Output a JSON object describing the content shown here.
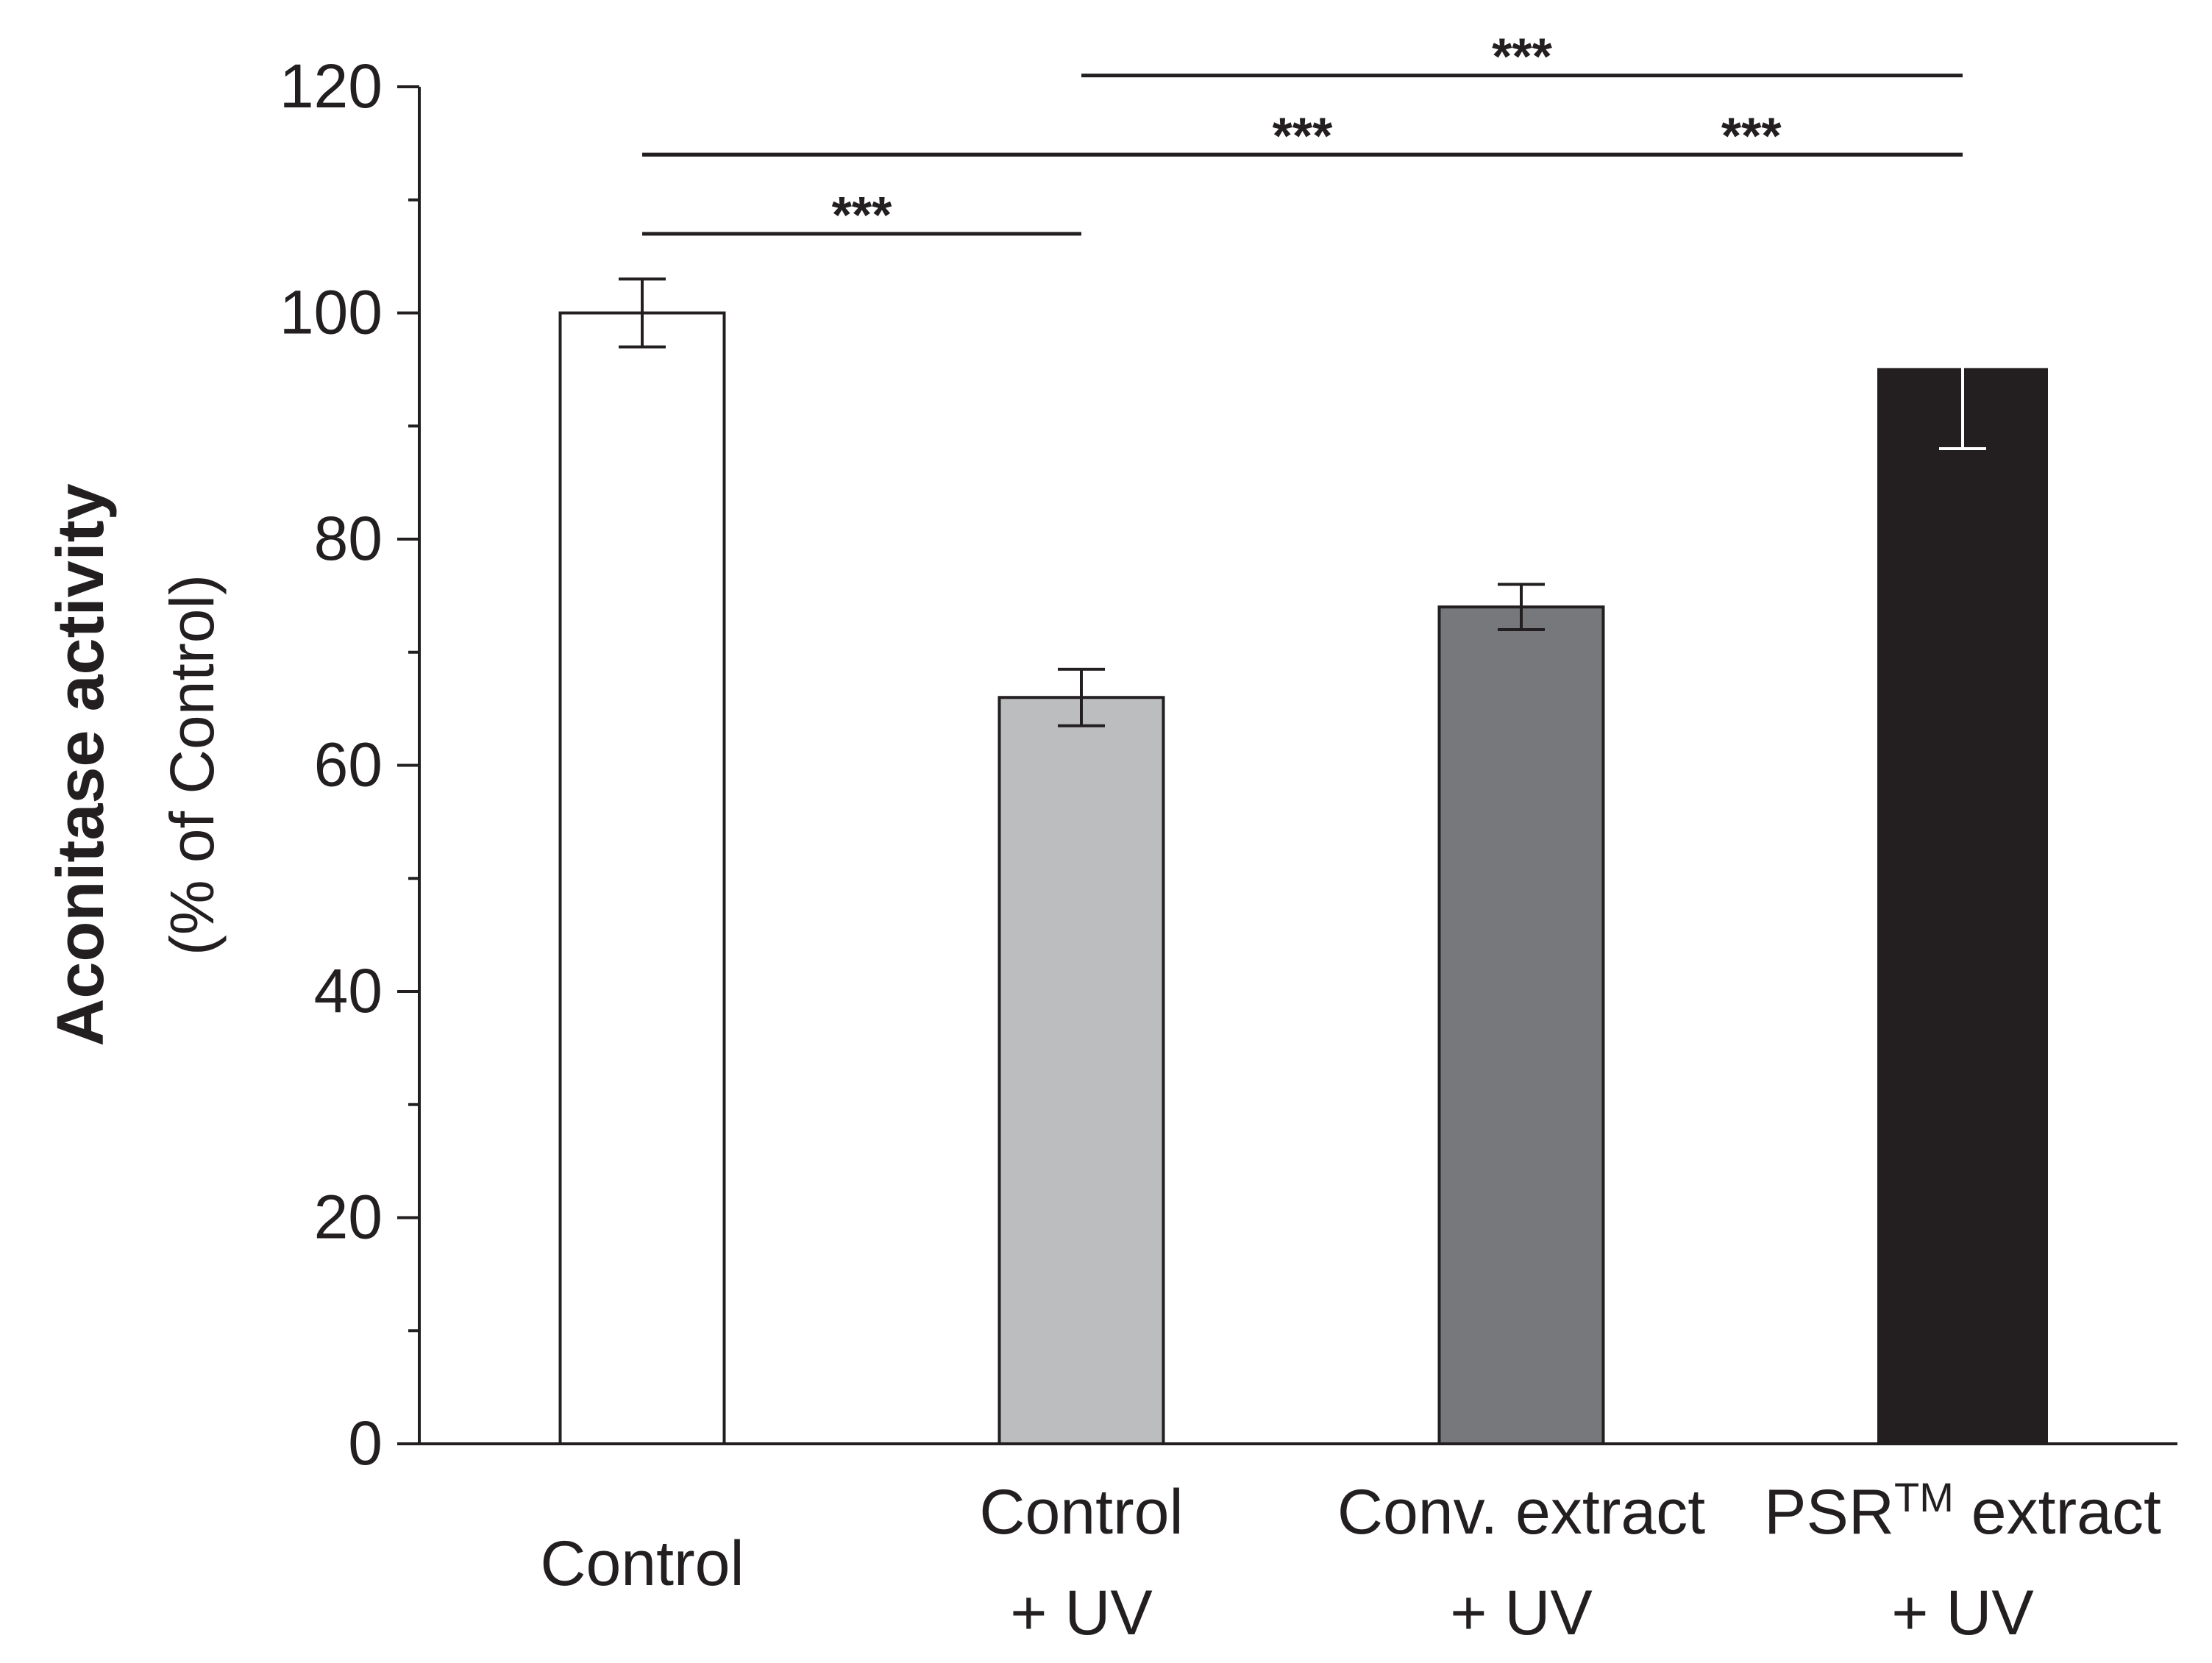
{
  "chart_data": {
    "type": "bar",
    "title": "",
    "xlabel": "",
    "ylabel": "Aconitase activity",
    "ylabel_sub": "(% of Control)",
    "ylim": [
      0,
      120
    ],
    "yticks": [
      0,
      20,
      40,
      60,
      80,
      100,
      120
    ],
    "categories": [
      {
        "line1": "Control",
        "line2": "",
        "sup": "",
        "line1_end": ""
      },
      {
        "line1": "Control",
        "line2": "+ UV",
        "sup": "",
        "line1_end": ""
      },
      {
        "line1": "Conv. extract",
        "line2": "+ UV",
        "sup": "",
        "line1_end": ""
      },
      {
        "line1": "PSR",
        "line2": "+ UV",
        "sup": "TM",
        "line1_end": " extract"
      }
    ],
    "values": [
      100,
      66,
      74,
      95
    ],
    "errors": [
      3,
      2.5,
      2,
      7
    ],
    "colors": [
      "#ffffff",
      "#bcbdbf",
      "#77787b",
      "#231f20"
    ],
    "error_bar_colors": [
      "#231f20",
      "#231f20",
      "#231f20",
      "#ffffff"
    ],
    "significance": [
      {
        "from": 0,
        "to": 1,
        "y": 107,
        "label": "***",
        "label_pos": 0.5
      },
      {
        "from": 0,
        "to": 3,
        "y": 114,
        "label": "***",
        "label_pos": 0.5
      },
      {
        "from": 0,
        "to": 3,
        "y": 114,
        "label": "***",
        "label_pos": 0.84
      },
      {
        "from": 1,
        "to": 3,
        "y": 121,
        "label": "***",
        "label_pos": 0.5
      }
    ]
  }
}
